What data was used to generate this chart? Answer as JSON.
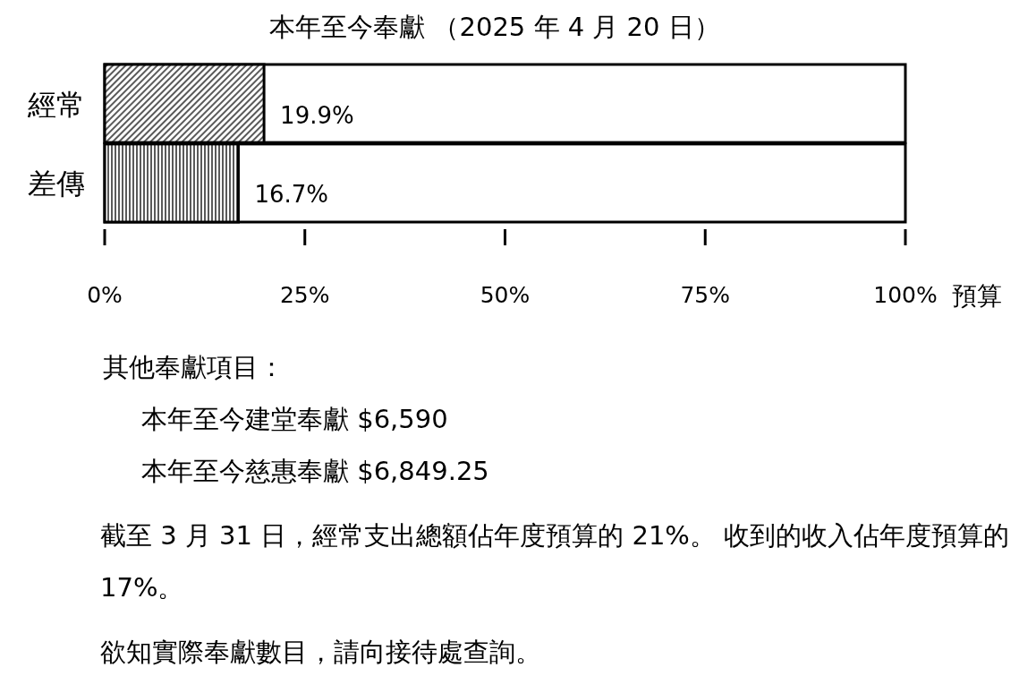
{
  "chart_data": {
    "type": "bar",
    "orientation": "horizontal",
    "title": "本年至今奉獻 （2025 年 4 月 20 日）",
    "categories": [
      "經常",
      "差傳"
    ],
    "values": [
      19.9,
      16.7
    ],
    "colors": [
      "#000000",
      "#000000"
    ],
    "data_labels": true,
    "value_labels": [
      "19.9%",
      "16.7%"
    ],
    "xlim": [
      0,
      100
    ],
    "xticks": [
      {
        "value": 0,
        "label": "0%"
      },
      {
        "value": 25,
        "label": "25%"
      },
      {
        "value": 50,
        "label": "50%"
      },
      {
        "value": 75,
        "label": "75%"
      },
      {
        "value": 100,
        "label": "100%"
      }
    ],
    "xlabel": "預算",
    "annotations": [
      "其他奉獻項目：",
      "本年至今建堂奉獻 $6,590",
      "本年至今慈惠奉獻 $6,849.25",
      "截至 3 月 31 日，經常支出總額佔年度預算的 21%。 收到的收入佔年度預算的 17%。",
      "欲知實際奉獻數目，請向接待處查詢。"
    ]
  }
}
